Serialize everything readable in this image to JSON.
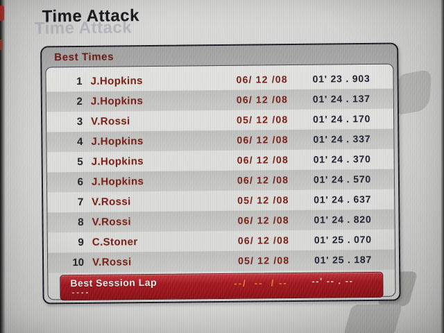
{
  "screen": {
    "title": "Time Attack",
    "title_shadow": "Time Attack"
  },
  "best_times": {
    "header": "Best Times",
    "rows": [
      {
        "rank": "1",
        "name": "J.Hopkins",
        "date": "06/ 12 /08",
        "time": "01' 23 . 903"
      },
      {
        "rank": "2",
        "name": "J.Hopkins",
        "date": "06/ 12 /08",
        "time": "01' 24 . 137"
      },
      {
        "rank": "3",
        "name": "V.Rossi",
        "date": "05/ 12 /08",
        "time": "01' 24 . 170"
      },
      {
        "rank": "4",
        "name": "J.Hopkins",
        "date": "06/ 12 /08",
        "time": "01' 24 . 337"
      },
      {
        "rank": "5",
        "name": "J.Hopkins",
        "date": "06/ 12 /08",
        "time": "01' 24 . 370"
      },
      {
        "rank": "6",
        "name": "J.Hopkins",
        "date": "06/ 12 /08",
        "time": "01' 24 . 570"
      },
      {
        "rank": "7",
        "name": "V.Rossi",
        "date": "05/ 12 /08",
        "time": "01' 24 . 637"
      },
      {
        "rank": "8",
        "name": "V.Rossi",
        "date": "06/ 12 /08",
        "time": "01' 24 . 820"
      },
      {
        "rank": "9",
        "name": "C.Stoner",
        "date": "06/ 12 /08",
        "time": "01' 25 . 070"
      },
      {
        "rank": "10",
        "name": "V.Rossi",
        "date": "05/ 12 /08",
        "time": "01' 25 . 187"
      }
    ],
    "best_session_lap": {
      "label": "Best Session Lap",
      "value_placeholder": "----",
      "date_placeholder": "--/  --  / --",
      "time_placeholder": "--' -- . --"
    }
  },
  "colors": {
    "accent_red": "#7a1d12",
    "time_navy": "#1d2130",
    "bar_red": "#a4141c",
    "dash_orange": "#de8a33"
  }
}
